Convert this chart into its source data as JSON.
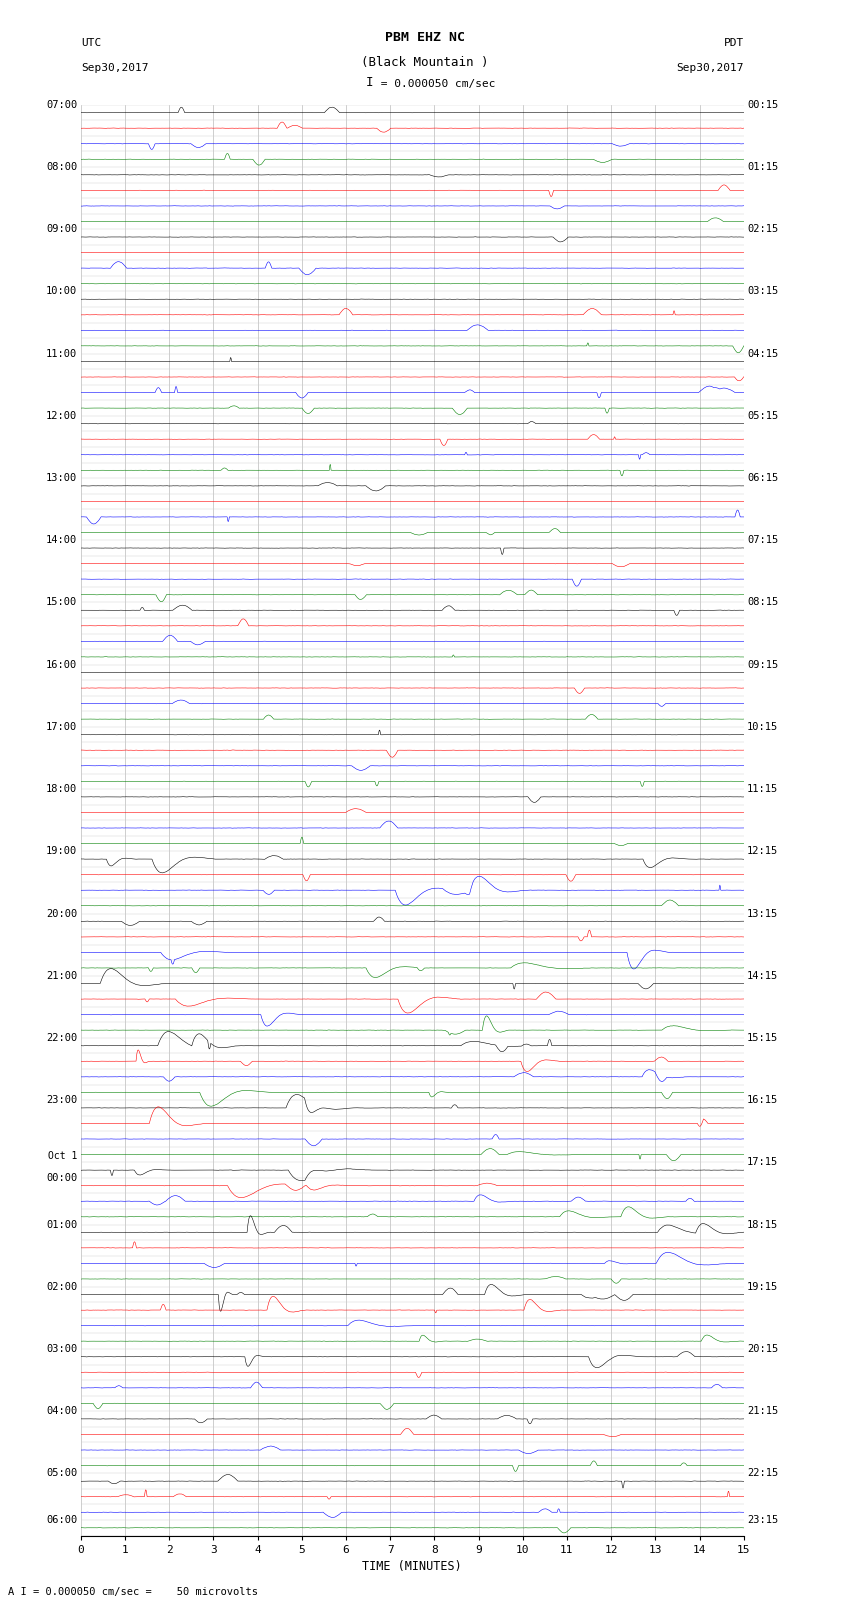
{
  "title_line1": "PBM EHZ NC",
  "title_line2": "(Black Mountain )",
  "title_scale": "I = 0.000050 cm/sec",
  "utc_label": "UTC",
  "utc_date": "Sep30,2017",
  "pdt_label": "PDT",
  "pdt_date": "Sep30,2017",
  "xlabel": "TIME (MINUTES)",
  "footer": "A I = 0.000050 cm/sec =    50 microvolts",
  "n_rows": 92,
  "row_colors": [
    "black",
    "red",
    "blue",
    "green"
  ],
  "background_color": "#ffffff",
  "xlim": [
    0,
    15
  ],
  "xticks": [
    0,
    1,
    2,
    3,
    4,
    5,
    6,
    7,
    8,
    9,
    10,
    11,
    12,
    13,
    14,
    15
  ],
  "fig_width": 8.5,
  "fig_height": 16.13,
  "hour_labels_left": [
    [
      0,
      "07:00"
    ],
    [
      4,
      "08:00"
    ],
    [
      8,
      "09:00"
    ],
    [
      12,
      "10:00"
    ],
    [
      16,
      "11:00"
    ],
    [
      20,
      "12:00"
    ],
    [
      24,
      "13:00"
    ],
    [
      28,
      "14:00"
    ],
    [
      32,
      "15:00"
    ],
    [
      36,
      "16:00"
    ],
    [
      40,
      "17:00"
    ],
    [
      44,
      "18:00"
    ],
    [
      48,
      "19:00"
    ],
    [
      52,
      "20:00"
    ],
    [
      56,
      "21:00"
    ],
    [
      60,
      "22:00"
    ],
    [
      64,
      "23:00"
    ],
    [
      68,
      "Oct 1"
    ],
    [
      69,
      "00:00"
    ],
    [
      72,
      "01:00"
    ],
    [
      76,
      "02:00"
    ],
    [
      80,
      "03:00"
    ],
    [
      84,
      "04:00"
    ],
    [
      88,
      "05:00"
    ],
    [
      91,
      "06:00"
    ]
  ],
  "hour_labels_right": [
    [
      0,
      "00:15"
    ],
    [
      4,
      "01:15"
    ],
    [
      8,
      "02:15"
    ],
    [
      12,
      "03:15"
    ],
    [
      16,
      "04:15"
    ],
    [
      20,
      "05:15"
    ],
    [
      24,
      "06:15"
    ],
    [
      28,
      "07:15"
    ],
    [
      32,
      "08:15"
    ],
    [
      36,
      "09:15"
    ],
    [
      40,
      "10:15"
    ],
    [
      44,
      "11:15"
    ],
    [
      48,
      "12:15"
    ],
    [
      52,
      "13:15"
    ],
    [
      56,
      "14:15"
    ],
    [
      60,
      "15:15"
    ],
    [
      64,
      "16:15"
    ],
    [
      68,
      "17:15"
    ],
    [
      72,
      "18:15"
    ],
    [
      76,
      "19:15"
    ],
    [
      80,
      "20:15"
    ],
    [
      84,
      "21:15"
    ],
    [
      88,
      "22:15"
    ],
    [
      91,
      "23:15"
    ]
  ]
}
